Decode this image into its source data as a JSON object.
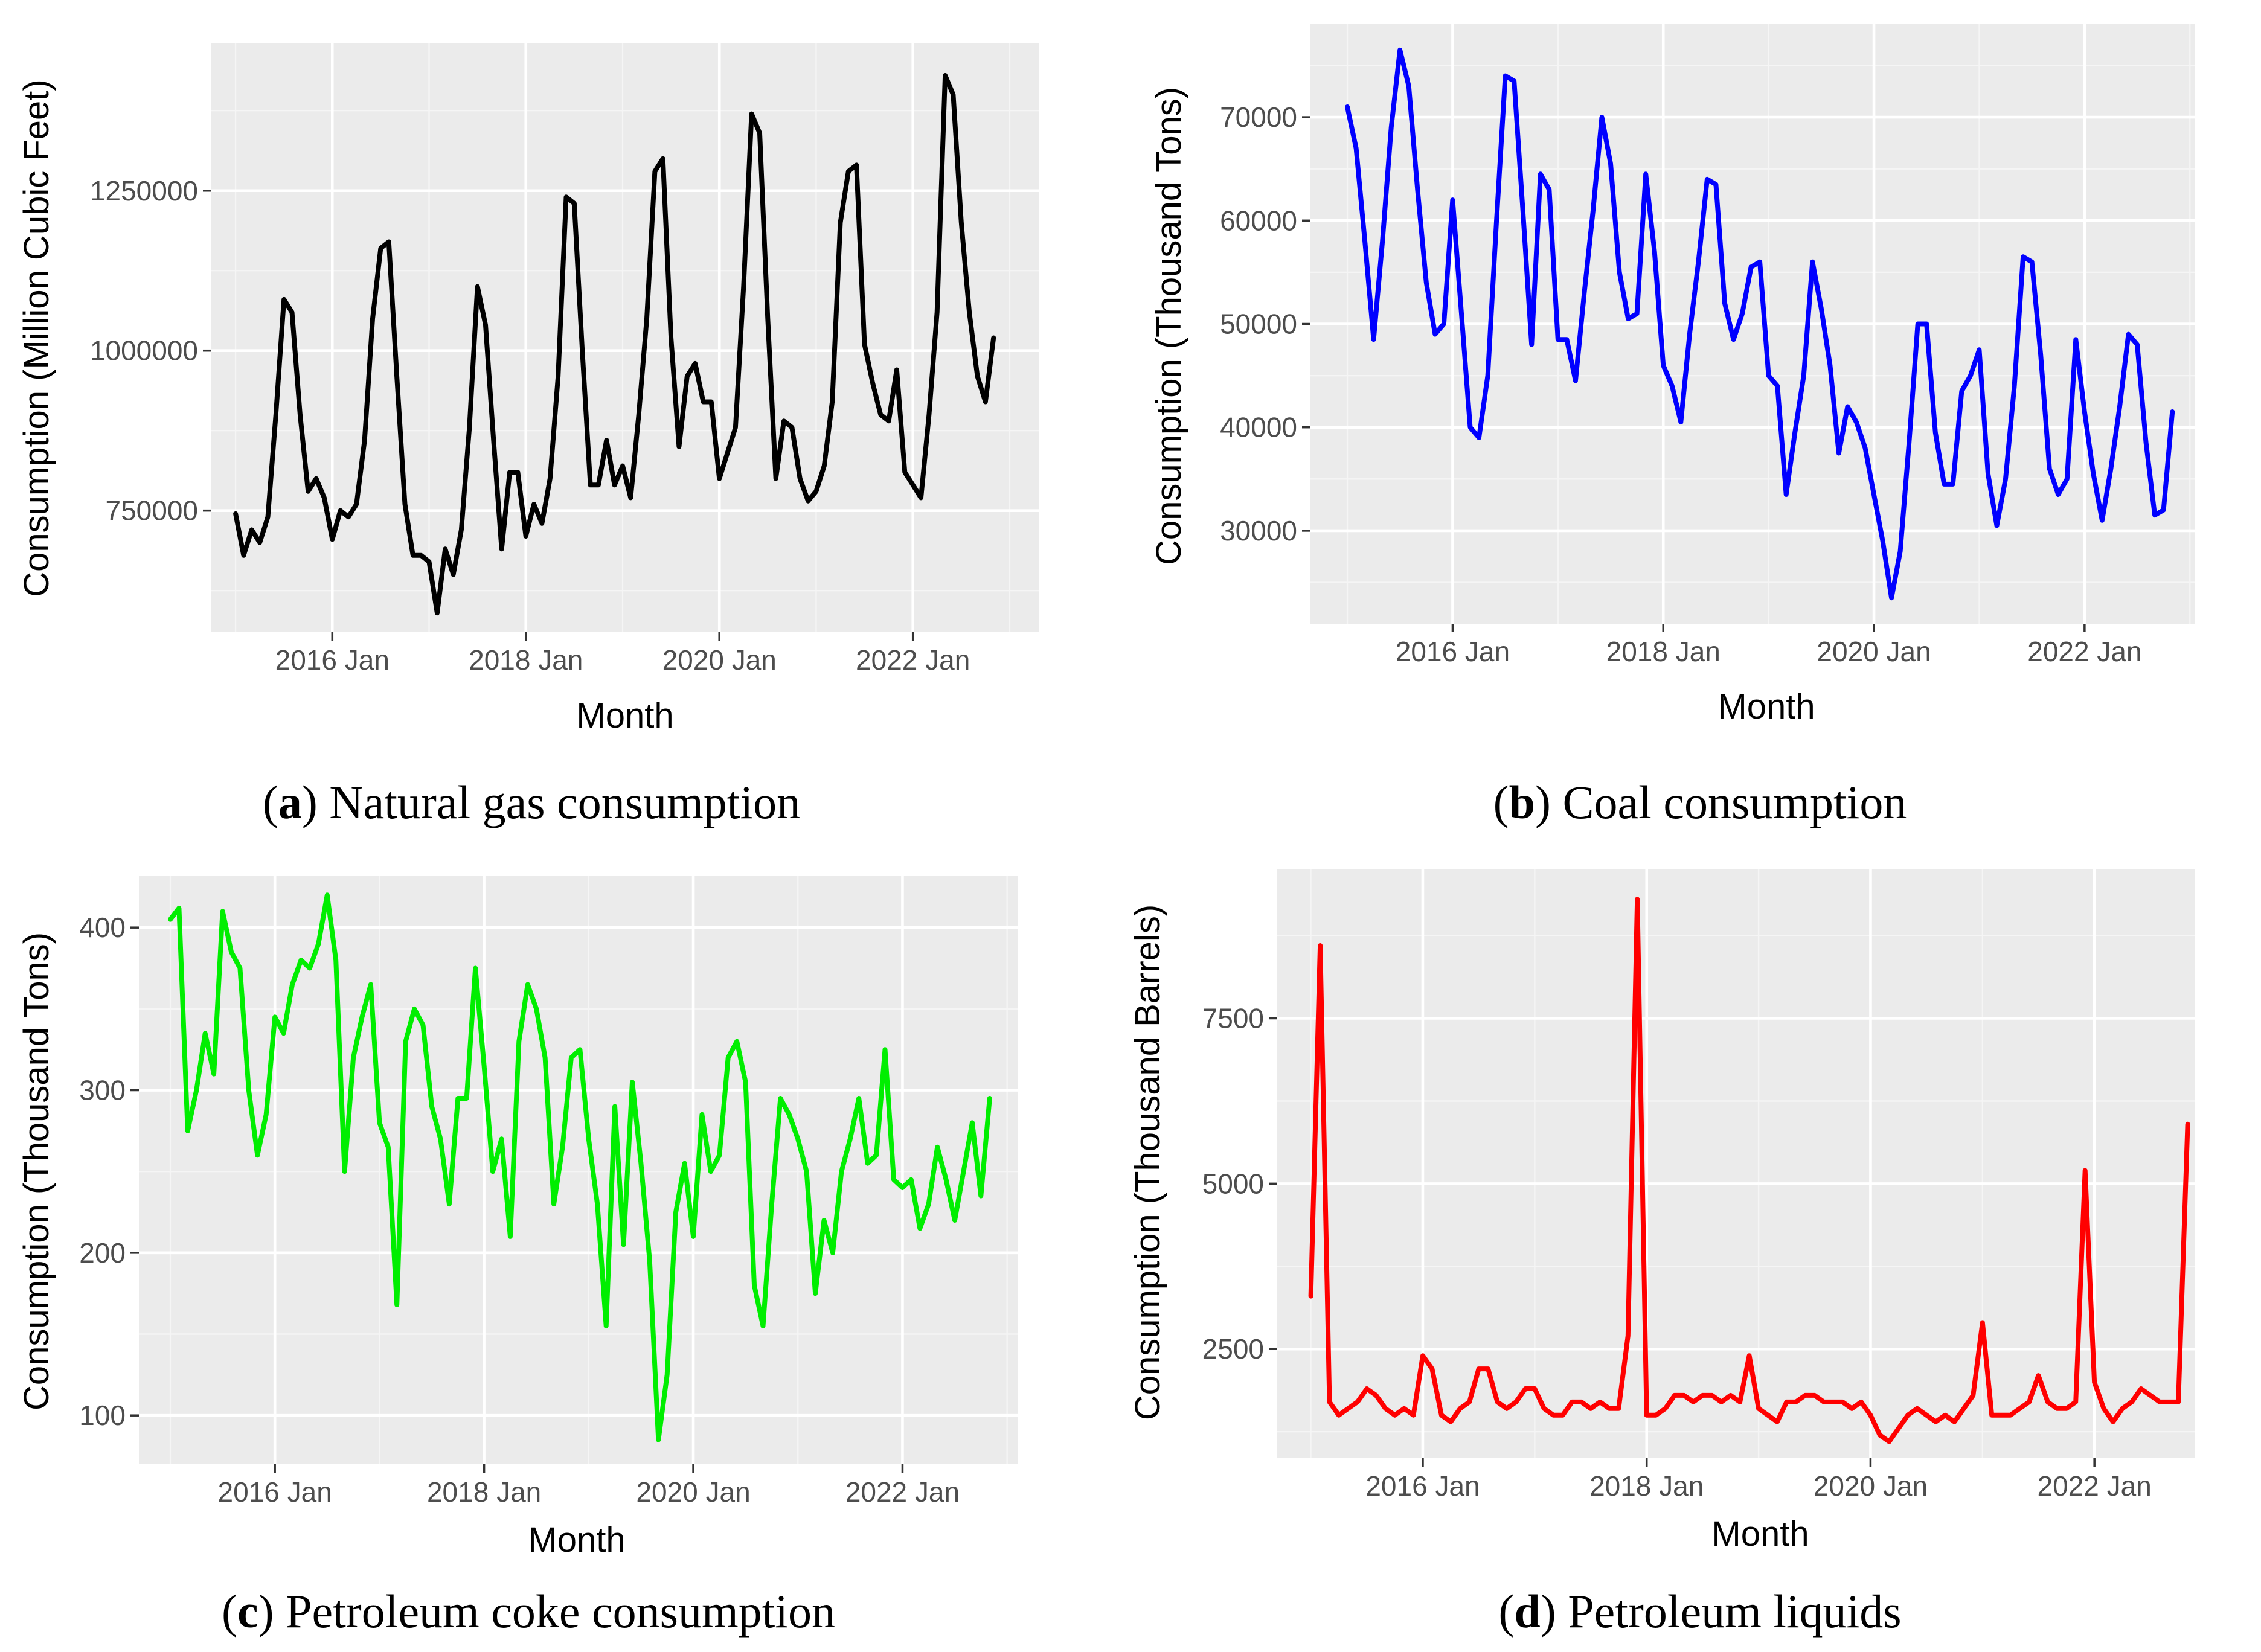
{
  "chart_data": [
    {
      "id": "a",
      "type": "line",
      "caption": {
        "open": "(",
        "letter": "a",
        "close": ")",
        "text": " Natural gas consumption"
      },
      "xlabel": "Month",
      "ylabel": "Consumption (Million Cubic Feet)",
      "xlim": [
        2014.75,
        2023.3
      ],
      "ylim": [
        560000,
        1480000
      ],
      "x_ticks": [
        {
          "value": 2016,
          "label": "2016 Jan"
        },
        {
          "value": 2018,
          "label": "2018 Jan"
        },
        {
          "value": 2020,
          "label": "2020 Jan"
        },
        {
          "value": 2022,
          "label": "2022 Jan"
        }
      ],
      "y_ticks": [
        {
          "value": 750000,
          "label": "750000"
        },
        {
          "value": 1000000,
          "label": "1000000"
        },
        {
          "value": 1250000,
          "label": "1250000"
        }
      ],
      "color": "#000000",
      "x_start": 2015.0,
      "x_step": 0.08333,
      "values": [
        745000,
        680000,
        720000,
        700000,
        740000,
        900000,
        1080000,
        1060000,
        900000,
        780000,
        800000,
        770000,
        705000,
        750000,
        740000,
        760000,
        860000,
        1050000,
        1160000,
        1170000,
        960000,
        760000,
        680000,
        680000,
        670000,
        590000,
        690000,
        650000,
        720000,
        880000,
        1100000,
        1040000,
        860000,
        690000,
        810000,
        810000,
        710000,
        760000,
        730000,
        800000,
        960000,
        1240000,
        1230000,
        1000000,
        790000,
        790000,
        860000,
        790000,
        820000,
        770000,
        900000,
        1050000,
        1280000,
        1300000,
        1020000,
        850000,
        960000,
        980000,
        920000,
        920000,
        800000,
        840000,
        880000,
        1100000,
        1370000,
        1340000,
        1050000,
        800000,
        890000,
        880000,
        800000,
        765000,
        780000,
        820000,
        920000,
        1200000,
        1280000,
        1290000,
        1010000,
        950000,
        900000,
        890000,
        970000,
        810000,
        790000,
        770000,
        900000,
        1060000,
        1430000,
        1400000,
        1200000,
        1060000,
        960000,
        920000,
        1020000
      ]
    },
    {
      "id": "b",
      "type": "line",
      "caption": {
        "open": "(",
        "letter": "b",
        "close": ")",
        "text": " Coal consumption"
      },
      "xlabel": "Month",
      "ylabel": "Consumption (Thousand Tons)",
      "xlim": [
        2014.65,
        2023.05
      ],
      "ylim": [
        21000,
        79000
      ],
      "x_ticks": [
        {
          "value": 2016,
          "label": "2016 Jan"
        },
        {
          "value": 2018,
          "label": "2018 Jan"
        },
        {
          "value": 2020,
          "label": "2020 Jan"
        },
        {
          "value": 2022,
          "label": "2022 Jan"
        }
      ],
      "y_ticks": [
        {
          "value": 30000,
          "label": "30000"
        },
        {
          "value": 40000,
          "label": "40000"
        },
        {
          "value": 50000,
          "label": "50000"
        },
        {
          "value": 60000,
          "label": "60000"
        },
        {
          "value": 70000,
          "label": "70000"
        }
      ],
      "color": "#0000ff",
      "x_start": 2015.0,
      "x_step": 0.08333,
      "values": [
        71000,
        67000,
        58000,
        48500,
        58000,
        69000,
        76500,
        73000,
        63000,
        54000,
        49000,
        50000,
        62000,
        51000,
        40000,
        39000,
        45000,
        60000,
        74000,
        73500,
        61000,
        48000,
        64500,
        63000,
        48500,
        48500,
        44500,
        53000,
        61000,
        70000,
        65500,
        55000,
        50500,
        51000,
        64500,
        57000,
        46000,
        44000,
        40500,
        49000,
        56000,
        64000,
        63500,
        52000,
        48500,
        51000,
        55500,
        56000,
        45000,
        44000,
        33500,
        39500,
        45000,
        56000,
        51500,
        46000,
        37500,
        42000,
        40500,
        38000,
        33500,
        29000,
        23500,
        28000,
        38500,
        50000,
        50000,
        39500,
        34500,
        34500,
        43500,
        45000,
        47500,
        35500,
        30500,
        35000,
        44000,
        56500,
        56000,
        47000,
        36000,
        33500,
        35000,
        48500,
        41500,
        35500,
        31000,
        36000,
        42000,
        49000,
        48000,
        38500,
        31500,
        32000,
        41500
      ]
    },
    {
      "id": "c",
      "type": "line",
      "caption": {
        "open": "(",
        "letter": "c",
        "close": ")",
        "text": " Petroleum coke consumption"
      },
      "xlabel": "Month",
      "ylabel": "Consumption (Thousand Tons)",
      "xlim": [
        2014.7,
        2023.1
      ],
      "ylim": [
        70,
        432
      ],
      "x_ticks": [
        {
          "value": 2016,
          "label": "2016 Jan"
        },
        {
          "value": 2018,
          "label": "2018 Jan"
        },
        {
          "value": 2020,
          "label": "2020 Jan"
        },
        {
          "value": 2022,
          "label": "2022 Jan"
        }
      ],
      "y_ticks": [
        {
          "value": 100,
          "label": "100"
        },
        {
          "value": 200,
          "label": "200"
        },
        {
          "value": 300,
          "label": "300"
        },
        {
          "value": 400,
          "label": "400"
        }
      ],
      "color": "#00ee00",
      "x_start": 2015.0,
      "x_step": 0.08333,
      "values": [
        405,
        412,
        275,
        300,
        335,
        310,
        410,
        385,
        375,
        300,
        260,
        285,
        345,
        335,
        365,
        380,
        375,
        390,
        420,
        380,
        250,
        320,
        345,
        365,
        280,
        265,
        168,
        330,
        350,
        340,
        290,
        270,
        230,
        295,
        295,
        375,
        315,
        250,
        270,
        210,
        330,
        365,
        350,
        320,
        230,
        265,
        320,
        325,
        270,
        230,
        155,
        290,
        205,
        305,
        255,
        195,
        85,
        125,
        225,
        255,
        210,
        285,
        250,
        260,
        320,
        330,
        305,
        180,
        155,
        230,
        295,
        285,
        270,
        250,
        175,
        220,
        200,
        250,
        270,
        295,
        255,
        260,
        325,
        245,
        240,
        245,
        215,
        230,
        265,
        245,
        220,
        250,
        280,
        235,
        295
      ]
    },
    {
      "id": "d",
      "type": "line",
      "caption": {
        "open": "(",
        "letter": "d",
        "close": ")",
        "text": " Petroleum liquids"
      },
      "xlabel": "Month",
      "ylabel": "Consumption (Thousand Barrels)",
      "xlim": [
        2014.7,
        2022.9
      ],
      "ylim": [
        850,
        9750
      ],
      "x_ticks": [
        {
          "value": 2016,
          "label": "2016 Jan"
        },
        {
          "value": 2018,
          "label": "2018 Jan"
        },
        {
          "value": 2020,
          "label": "2020 Jan"
        },
        {
          "value": 2022,
          "label": "2022 Jan"
        }
      ],
      "y_ticks": [
        {
          "value": 2500,
          "label": "2500"
        },
        {
          "value": 5000,
          "label": "5000"
        },
        {
          "value": 7500,
          "label": "7500"
        }
      ],
      "color": "#ff0000",
      "x_start": 2015.0,
      "x_step": 0.08333,
      "values": [
        3300,
        8600,
        1700,
        1500,
        1600,
        1700,
        1900,
        1800,
        1600,
        1500,
        1600,
        1500,
        2400,
        2200,
        1500,
        1400,
        1600,
        1700,
        2200,
        2200,
        1700,
        1600,
        1700,
        1900,
        1900,
        1600,
        1500,
        1500,
        1700,
        1700,
        1600,
        1700,
        1600,
        1600,
        2700,
        9300,
        1500,
        1500,
        1600,
        1800,
        1800,
        1700,
        1800,
        1800,
        1700,
        1800,
        1700,
        2400,
        1600,
        1500,
        1400,
        1700,
        1700,
        1800,
        1800,
        1700,
        1700,
        1700,
        1600,
        1700,
        1500,
        1200,
        1100,
        1300,
        1500,
        1600,
        1500,
        1400,
        1500,
        1400,
        1600,
        1800,
        2900,
        1500,
        1500,
        1500,
        1600,
        1700,
        2100,
        1700,
        1600,
        1600,
        1700,
        5200,
        2000,
        1600,
        1400,
        1600,
        1700,
        1900,
        1800,
        1700,
        1700,
        1700,
        5900
      ]
    }
  ]
}
